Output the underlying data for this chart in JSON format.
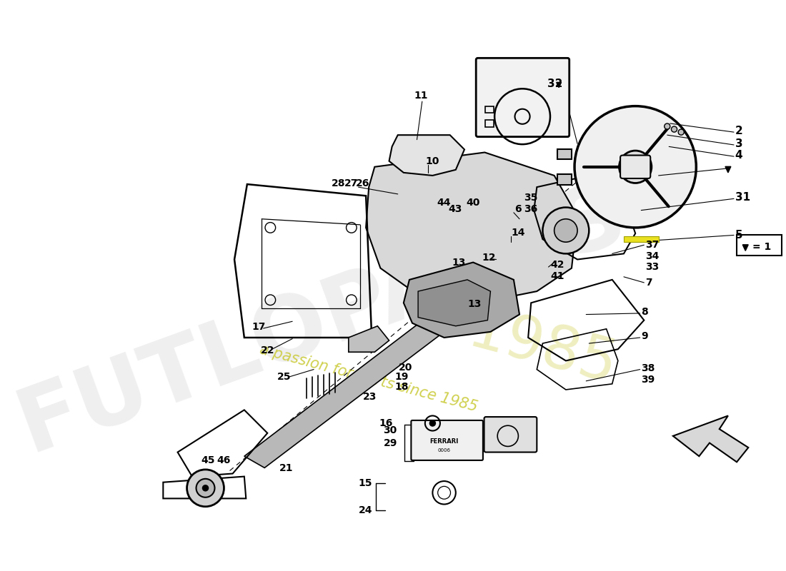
{
  "bg_color": "#ffffff",
  "line_color": "#000000",
  "watermark_color": "#c8c830",
  "watermark_text": "a passion for parts since 1985"
}
